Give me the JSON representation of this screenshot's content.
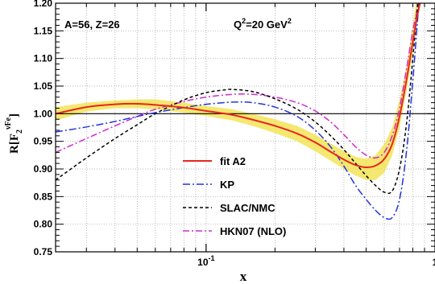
{
  "chart_data": {
    "type": "line",
    "xscale": "log",
    "xlim": [
      0.022,
      1.0
    ],
    "ylim": [
      0.75,
      1.2
    ],
    "grid": true,
    "legend_position": "bottom-center",
    "xlabel": "x",
    "ylabel": {
      "base": "R[F",
      "sub": "2",
      "sup": "νFe",
      "end": "]"
    },
    "x_ticks": [
      {
        "value": 0.1,
        "label": "10",
        "sup": "-1"
      },
      {
        "value": 1.0,
        "label": "1",
        "sup": ""
      }
    ],
    "y_ticks": [
      {
        "value": 0.75,
        "label": "0.75"
      },
      {
        "value": 0.8,
        "label": "0.80"
      },
      {
        "value": 0.85,
        "label": "0.85"
      },
      {
        "value": 0.9,
        "label": "0.90"
      },
      {
        "value": 0.95,
        "label": "0.95"
      },
      {
        "value": 1.0,
        "label": "1.00"
      },
      {
        "value": 1.05,
        "label": "1.05"
      },
      {
        "value": 1.1,
        "label": "1.10"
      },
      {
        "value": 1.15,
        "label": "1.15"
      },
      {
        "value": 1.2,
        "label": "1.20"
      }
    ],
    "reference_line": 1.0,
    "annotations": {
      "nucleus": "A=56, Z=26",
      "q2": {
        "base": "Q",
        "sup1": "2",
        "mid": "=20 GeV",
        "sup2": "2"
      }
    },
    "band": {
      "name": "fit A2 uncertainty",
      "color": "#f0e040",
      "x": [
        0.022,
        0.03,
        0.04,
        0.05,
        0.06,
        0.08,
        0.1,
        0.13,
        0.16,
        0.2,
        0.25,
        0.3,
        0.35,
        0.4,
        0.45,
        0.5,
        0.55,
        0.6,
        0.65,
        0.7,
        0.75,
        0.8,
        0.85
      ],
      "low": [
        0.988,
        1.004,
        1.01,
        1.01,
        1.008,
        1.002,
        0.996,
        0.988,
        0.978,
        0.965,
        0.95,
        0.932,
        0.915,
        0.9,
        0.888,
        0.88,
        0.88,
        0.893,
        0.925,
        0.975,
        1.04,
        1.11,
        1.185
      ],
      "high": [
        1.012,
        1.02,
        1.024,
        1.026,
        1.026,
        1.02,
        1.014,
        1.008,
        1.0,
        0.99,
        0.978,
        0.962,
        0.946,
        0.932,
        0.922,
        0.918,
        0.925,
        0.945,
        0.975,
        1.025,
        1.085,
        1.16,
        1.24
      ]
    },
    "series": [
      {
        "name": "fit A2",
        "color": "#e8251f",
        "dash": "",
        "width": 2,
        "x": [
          0.022,
          0.03,
          0.04,
          0.05,
          0.06,
          0.08,
          0.1,
          0.13,
          0.16,
          0.2,
          0.25,
          0.3,
          0.35,
          0.4,
          0.45,
          0.5,
          0.55,
          0.6,
          0.65,
          0.7,
          0.75,
          0.8,
          0.83,
          0.86
        ],
        "y": [
          1.0,
          1.012,
          1.017,
          1.018,
          1.016,
          1.011,
          1.005,
          0.998,
          0.989,
          0.978,
          0.964,
          0.948,
          0.931,
          0.917,
          0.907,
          0.903,
          0.906,
          0.918,
          0.945,
          0.995,
          1.06,
          1.13,
          1.17,
          1.2
        ]
      },
      {
        "name": "KP",
        "color": "#2233dd",
        "dash": "9 3 2 3",
        "width": 1.5,
        "x": [
          0.022,
          0.03,
          0.04,
          0.05,
          0.06,
          0.08,
          0.1,
          0.13,
          0.16,
          0.2,
          0.25,
          0.3,
          0.35,
          0.4,
          0.45,
          0.5,
          0.55,
          0.6,
          0.65,
          0.7,
          0.75,
          0.8,
          0.85
        ],
        "y": [
          0.967,
          0.976,
          0.986,
          0.995,
          1.002,
          1.011,
          1.017,
          1.021,
          1.02,
          1.012,
          0.995,
          0.97,
          0.94,
          0.905,
          0.87,
          0.845,
          0.825,
          0.812,
          0.812,
          0.845,
          0.93,
          1.06,
          1.2
        ]
      },
      {
        "name": "SLAC/NMC",
        "color": "#000000",
        "dash": "4 3",
        "width": 1.5,
        "x": [
          0.022,
          0.03,
          0.04,
          0.05,
          0.06,
          0.08,
          0.1,
          0.12,
          0.13,
          0.16,
          0.2,
          0.25,
          0.3,
          0.35,
          0.4,
          0.45,
          0.5,
          0.55,
          0.6,
          0.65,
          0.7,
          0.75,
          0.8,
          0.84
        ],
        "y": [
          0.88,
          0.92,
          0.955,
          0.98,
          1.0,
          1.025,
          1.038,
          1.043,
          1.044,
          1.04,
          1.027,
          1.008,
          0.985,
          0.96,
          0.935,
          0.91,
          0.888,
          0.87,
          0.858,
          0.86,
          0.9,
          0.98,
          1.1,
          1.2
        ]
      },
      {
        "name": "HKN07 (NLO)",
        "color": "#d02ad0",
        "dash": "8 3 2 3",
        "width": 1.5,
        "x": [
          0.022,
          0.03,
          0.04,
          0.05,
          0.06,
          0.08,
          0.1,
          0.13,
          0.16,
          0.2,
          0.25,
          0.3,
          0.35,
          0.4,
          0.45,
          0.5,
          0.55,
          0.6,
          0.65,
          0.7,
          0.75,
          0.8,
          0.85
        ],
        "y": [
          0.93,
          0.955,
          0.978,
          0.995,
          1.008,
          1.022,
          1.03,
          1.035,
          1.035,
          1.03,
          1.02,
          1.005,
          0.985,
          0.962,
          0.94,
          0.925,
          0.92,
          0.93,
          0.96,
          1.01,
          1.08,
          1.15,
          1.2
        ]
      }
    ]
  }
}
